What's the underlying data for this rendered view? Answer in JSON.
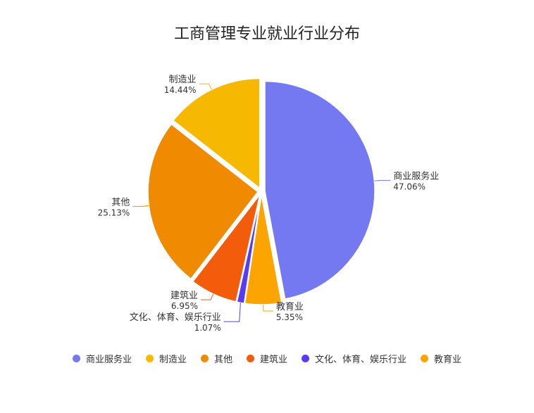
{
  "chart_data": {
    "type": "pie",
    "title": "工商管理专业就业行业分布",
    "legend_placement": "bottom",
    "slices": [
      {
        "label": "商业服务业",
        "value": 47.06,
        "value_text": "47.06%",
        "color": "#7479f2"
      },
      {
        "label": "教育业",
        "value": 5.35,
        "value_text": "5.35%",
        "color": "#fca400"
      },
      {
        "label": "文化、体育、娱乐行业",
        "value": 1.07,
        "value_text": "1.07%",
        "color": "#5a39f7"
      },
      {
        "label": "建筑业",
        "value": 6.95,
        "value_text": "6.95%",
        "color": "#f25c0a"
      },
      {
        "label": "其他",
        "value": 25.13,
        "value_text": "25.13%",
        "color": "#f08a00"
      },
      {
        "label": "制造业",
        "value": 14.44,
        "value_text": "14.44%",
        "color": "#f6b800"
      }
    ],
    "legend_order": [
      "商业服务业",
      "制造业",
      "其他",
      "建筑业",
      "文化、体育、娱乐行业",
      "教育业"
    ]
  }
}
